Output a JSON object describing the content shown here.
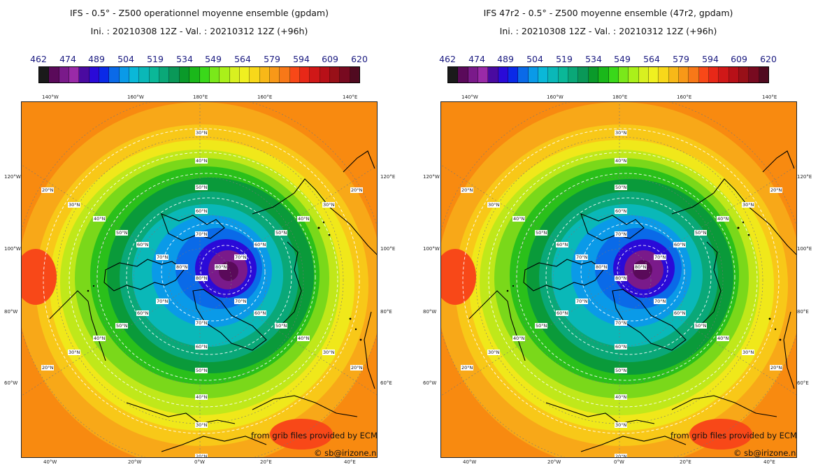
{
  "panels": [
    {
      "title": "IFS - 0.5° - Z500 operationnel moyenne ensemble (gpdam)",
      "subtitle": "Ini. : 20210308 12Z - Val. : 20210312 12Z (+96h)"
    },
    {
      "title": "IFS 47r2 - 0.5° - Z500 moyenne ensemble (47r2, gpdam)",
      "subtitle": "Ini. : 20210308 12Z - Val. : 20210312 12Z (+96h)"
    }
  ],
  "scale": {
    "labels": [
      "462",
      "474",
      "489",
      "504",
      "519",
      "534",
      "549",
      "564",
      "579",
      "594",
      "609",
      "620"
    ],
    "colors": [
      "#1a1a1a",
      "#5a0a5a",
      "#7a1a8a",
      "#9a2aa8",
      "#4a0aa0",
      "#2a0ad8",
      "#0a2ae8",
      "#0a6ae8",
      "#0a9ae8",
      "#0ab8d8",
      "#0ab8b8",
      "#0ab898",
      "#0aa878",
      "#0a9858",
      "#0a9a2a",
      "#1ab81a",
      "#3ad81a",
      "#7ae81a",
      "#aaf01a",
      "#d8f020",
      "#f0f020",
      "#f8d81a",
      "#f8b818",
      "#f89818",
      "#f87818",
      "#f84818",
      "#e82818",
      "#d01818",
      "#b81018",
      "#981018",
      "#780a20",
      "#500a20"
    ]
  },
  "map": {
    "lon_top": [
      "140°W",
      "160°W",
      "180°E",
      "160°E",
      "140°E"
    ],
    "lon_bottom": [
      "40°W",
      "20°W",
      "0°W",
      "20°E",
      "40°E"
    ],
    "lon_left": [
      "120°W",
      "100°W",
      "80°W",
      "60°W"
    ],
    "lon_right": [
      "120°E",
      "100°E",
      "80°E",
      "60°E"
    ],
    "lat_labels": [
      "20°N",
      "30°N",
      "40°N",
      "50°N",
      "60°N",
      "70°N",
      "80°N"
    ],
    "credit_grib": "from grib files provided by ECMWF",
    "credit_site": "© sb@irizone.net"
  }
}
